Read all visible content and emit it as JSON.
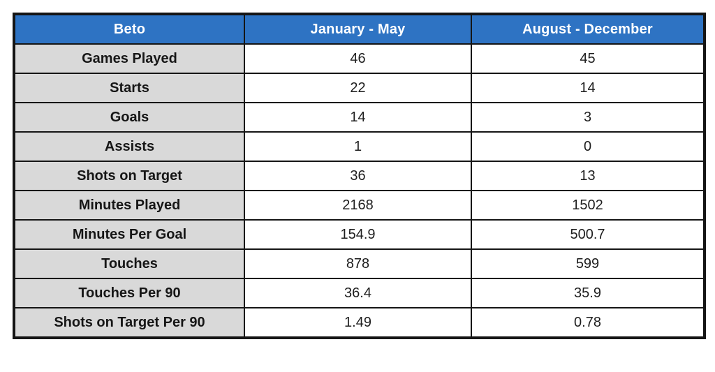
{
  "colors": {
    "header_bg": "#2E73C3",
    "header_text": "#FFFFFF",
    "label_bg": "#D9D9D9",
    "cell_bg": "#FFFFFF",
    "border": "#151515"
  },
  "table": {
    "header": {
      "player": "Beto",
      "period1": "January - May",
      "period2": "August - December"
    },
    "rows": [
      {
        "label": "Games Played",
        "p1": "46",
        "p2": "45"
      },
      {
        "label": "Starts",
        "p1": "22",
        "p2": "14"
      },
      {
        "label": "Goals",
        "p1": "14",
        "p2": "3"
      },
      {
        "label": "Assists",
        "p1": "1",
        "p2": "0"
      },
      {
        "label": "Shots on Target",
        "p1": "36",
        "p2": "13"
      },
      {
        "label": "Minutes Played",
        "p1": "2168",
        "p2": "1502"
      },
      {
        "label": "Minutes Per Goal",
        "p1": "154.9",
        "p2": "500.7"
      },
      {
        "label": "Touches",
        "p1": "878",
        "p2": "599"
      },
      {
        "label": "Touches Per 90",
        "p1": "36.4",
        "p2": "35.9"
      },
      {
        "label": "Shots on Target Per 90",
        "p1": "1.49",
        "p2": "0.78"
      }
    ]
  },
  "chart_data": {
    "type": "table",
    "title": "Beto",
    "columns": [
      "Beto",
      "January - May",
      "August - December"
    ],
    "categories": [
      "Games Played",
      "Starts",
      "Goals",
      "Assists",
      "Shots on Target",
      "Minutes Played",
      "Minutes Per Goal",
      "Touches",
      "Touches Per 90",
      "Shots on Target Per 90"
    ],
    "series": [
      {
        "name": "January - May",
        "values": [
          46,
          22,
          14,
          1,
          36,
          2168,
          154.9,
          878,
          36.4,
          1.49
        ]
      },
      {
        "name": "August - December",
        "values": [
          45,
          14,
          3,
          0,
          13,
          1502,
          500.7,
          599,
          35.9,
          0.78
        ]
      }
    ],
    "layout_hints": {
      "header_bg": "#2E73C3",
      "label_column_bg": "#D9D9D9",
      "grid": "black borders",
      "alignment": "center"
    }
  }
}
